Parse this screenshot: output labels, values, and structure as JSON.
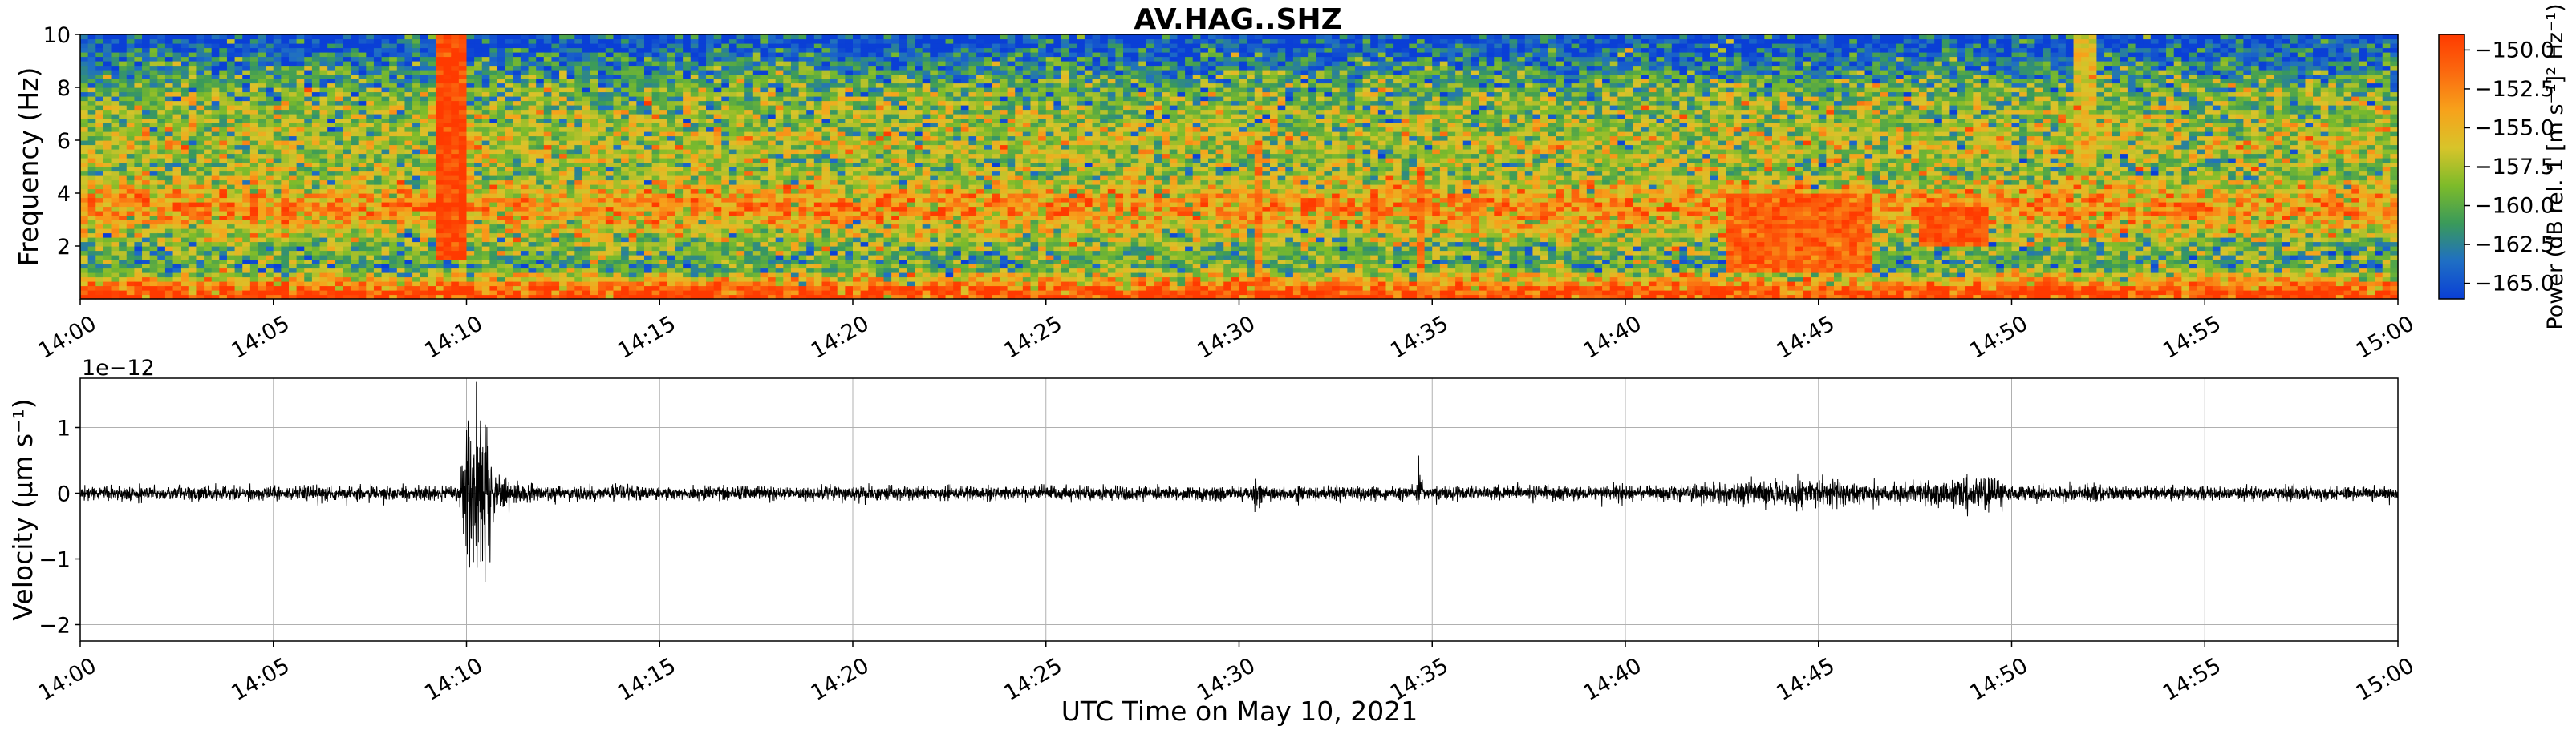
{
  "chart_data": [
    {
      "type": "heatmap",
      "title": "AV.HAG..SHZ",
      "xlabel": "",
      "ylabel": "Frequency (Hz)",
      "xlim": [
        "14:00",
        "15:00"
      ],
      "ylim": [
        0,
        10
      ],
      "x_ticks": [
        "14:00",
        "14:05",
        "14:10",
        "14:15",
        "14:20",
        "14:25",
        "14:30",
        "14:35",
        "14:40",
        "14:45",
        "14:50",
        "14:55",
        "15:00"
      ],
      "y_ticks": [
        "2",
        "4",
        "6",
        "8",
        "10"
      ],
      "colorbar": {
        "label": "Power (dB rel. 1 [m s⁻¹]² Hz⁻¹)",
        "ticks": [
          "−150.0",
          "−152.5",
          "−155.0",
          "−157.5",
          "−160.0",
          "−162.5",
          "−165.0"
        ],
        "tick_values": [
          -150,
          -152.5,
          -155,
          -157.5,
          -160,
          -162.5,
          -165
        ],
        "range": [
          -166,
          -149
        ],
        "colormap": [
          "#0a3fd6",
          "#1f6fc4",
          "#3a9a5a",
          "#7dbb2a",
          "#d8c42a",
          "#f7a21b",
          "#fb6a0f",
          "#ff3a00"
        ]
      },
      "base_profile_hz_db": [
        {
          "f": 0.3,
          "db": -149.5
        },
        {
          "f": 1.2,
          "db": -160.5
        },
        {
          "f": 2.0,
          "db": -159
        },
        {
          "f": 3.5,
          "db": -152.5
        },
        {
          "f": 4.8,
          "db": -158.5
        },
        {
          "f": 5.8,
          "db": -157
        },
        {
          "f": 7.0,
          "db": -158.5
        },
        {
          "f": 8.0,
          "db": -159.5
        },
        {
          "f": 8.8,
          "db": -162
        },
        {
          "f": 9.5,
          "db": -165
        },
        {
          "f": 10.0,
          "db": -165.5
        }
      ],
      "events": [
        {
          "t_min": 9.6,
          "width_min": 0.5,
          "f_min": 1.5,
          "f_max": 10,
          "db": -149.5
        },
        {
          "t_min": 30.5,
          "width_min": 0.15,
          "f_min": 0.5,
          "f_max": 6,
          "db": -152
        },
        {
          "t_min": 34.7,
          "width_min": 0.15,
          "f_min": 1,
          "f_max": 5,
          "db": -151
        },
        {
          "t_min": 44.5,
          "width_min": 3.5,
          "f_min": 1,
          "f_max": 4,
          "db": -151
        },
        {
          "t_min": 48.5,
          "width_min": 1.5,
          "f_min": 2,
          "f_max": 3.5,
          "db": -150
        },
        {
          "t_min": 52.0,
          "width_min": 0.4,
          "f_min": 5,
          "f_max": 10,
          "db": -156
        }
      ]
    },
    {
      "type": "line",
      "title": "",
      "xlabel": "UTC Time on May 10, 2021",
      "ylabel": "Velocity (μm s⁻¹)",
      "offset_text": "1e−12",
      "xlim": [
        "14:00",
        "15:00"
      ],
      "ylim": [
        -2.25,
        1.75
      ],
      "x_ticks": [
        "14:00",
        "14:05",
        "14:10",
        "14:15",
        "14:20",
        "14:25",
        "14:30",
        "14:35",
        "14:40",
        "14:45",
        "14:50",
        "14:55",
        "15:00"
      ],
      "y_ticks": [
        "−2",
        "−1",
        "0",
        "1"
      ],
      "y_tick_values": [
        -2,
        -1,
        0,
        1
      ],
      "grid": true,
      "series": [
        {
          "color": "#000000",
          "background_amplitude": 0.12,
          "envelope": [
            {
              "t_min": 0.0,
              "amp": 0.12
            },
            {
              "t_min": 9.8,
              "amp": 0.12
            },
            {
              "t_min": 9.9,
              "amp": 1.0
            },
            {
              "t_min": 10.1,
              "amp": 1.25
            },
            {
              "t_min": 10.3,
              "amp": 1.6
            },
            {
              "t_min": 10.45,
              "amp": 2.05
            },
            {
              "t_min": 10.6,
              "amp": 0.9
            },
            {
              "t_min": 10.8,
              "amp": 0.4
            },
            {
              "t_min": 11.2,
              "amp": 0.2
            },
            {
              "t_min": 12.0,
              "amp": 0.12
            },
            {
              "t_min": 30.35,
              "amp": 0.12
            },
            {
              "t_min": 30.45,
              "amp": 0.4
            },
            {
              "t_min": 30.6,
              "amp": 0.12
            },
            {
              "t_min": 34.55,
              "amp": 0.12
            },
            {
              "t_min": 34.65,
              "amp": 0.42
            },
            {
              "t_min": 34.8,
              "amp": 0.12
            },
            {
              "t_min": 41.5,
              "amp": 0.14
            },
            {
              "t_min": 44.5,
              "amp": 0.26
            },
            {
              "t_min": 46.5,
              "amp": 0.16
            },
            {
              "t_min": 48.0,
              "amp": 0.22
            },
            {
              "t_min": 49.2,
              "amp": 0.32
            },
            {
              "t_min": 50.2,
              "amp": 0.15
            },
            {
              "t_min": 51.9,
              "amp": 0.12
            },
            {
              "t_min": 52.1,
              "amp": 0.28
            },
            {
              "t_min": 52.3,
              "amp": 0.12
            },
            {
              "t_min": 60.0,
              "amp": 0.12
            }
          ]
        }
      ]
    }
  ]
}
